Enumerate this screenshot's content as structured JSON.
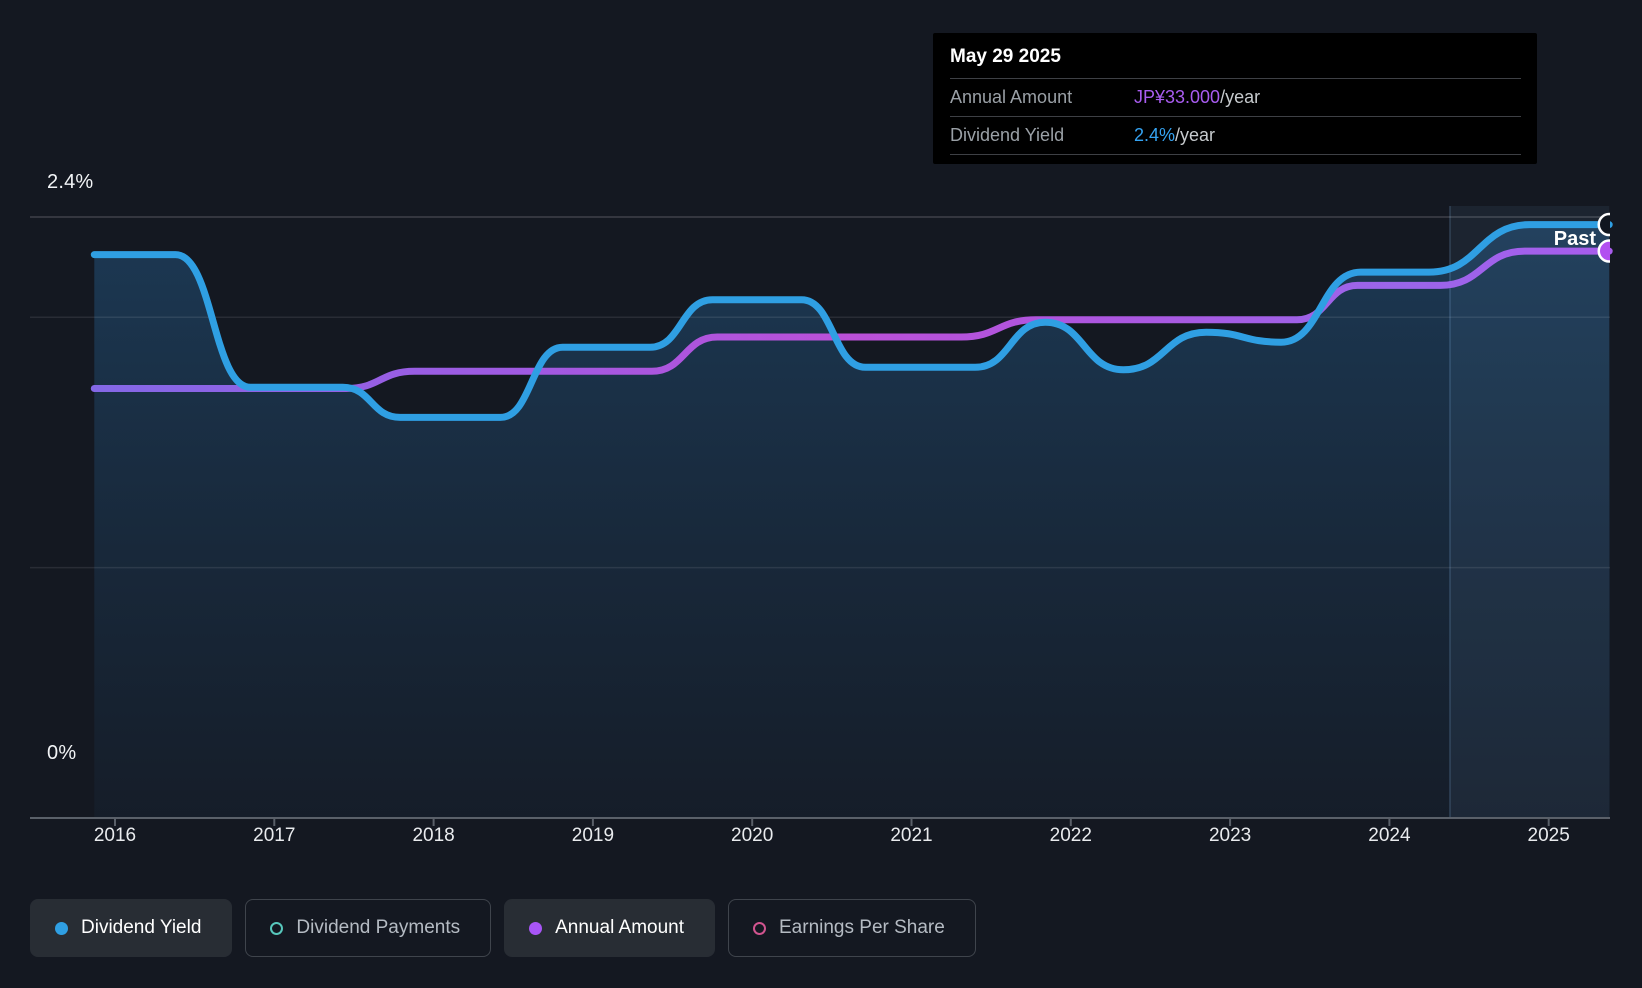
{
  "page": {
    "background": "#141821"
  },
  "tooltip": {
    "date": "May 29 2025",
    "rows": [
      {
        "label": "Annual Amount",
        "value": "JP¥33.000",
        "suffix": "/year",
        "value_color": "#a85cf0"
      },
      {
        "label": "Dividend Yield",
        "value": "2.4%",
        "suffix": "/year",
        "value_color": "#35a3f2"
      }
    ]
  },
  "axis": {
    "y_top_label": "2.4%",
    "y_bottom_label": "0%",
    "years": [
      "2016",
      "2017",
      "2018",
      "2019",
      "2020",
      "2021",
      "2022",
      "2023",
      "2024",
      "2025"
    ]
  },
  "past_label": "Past",
  "legend": {
    "items": [
      {
        "label": "Dividend Yield",
        "color": "#2f9fe3",
        "filled": true,
        "active": true
      },
      {
        "label": "Dividend Payments",
        "color": "#57c7bc",
        "filled": false,
        "active": false
      },
      {
        "label": "Annual Amount",
        "color": "#a855f7",
        "filled": true,
        "active": true
      },
      {
        "label": "Earnings Per Share",
        "color": "#d1548f",
        "filled": false,
        "active": false
      }
    ]
  },
  "chart_data": {
    "type": "line",
    "x_range": [
      2015.87,
      2025.38
    ],
    "x_ticks": [
      2016,
      2017,
      2018,
      2019,
      2020,
      2021,
      2022,
      2023,
      2024,
      2025
    ],
    "y_axis": {
      "unit": "%",
      "range": [
        0,
        2.4
      ],
      "top_label": "2.4%",
      "bottom_label": "0%"
    },
    "gridlines_pct": [
      2.4,
      2.0,
      1.0,
      0.0
    ],
    "highlight_band_years": [
      2024.38,
      2025.38
    ],
    "annotation": "Past",
    "legend_position": "bottom",
    "series": [
      {
        "name": "Dividend Yield",
        "unit": "%",
        "color": "#2f9fe3",
        "area": true,
        "points": [
          [
            2015.87,
            2.25
          ],
          [
            2016.38,
            2.25
          ],
          [
            2016.85,
            1.72
          ],
          [
            2017.43,
            1.72
          ],
          [
            2017.79,
            1.6
          ],
          [
            2018.42,
            1.6
          ],
          [
            2018.81,
            1.88
          ],
          [
            2019.36,
            1.88
          ],
          [
            2019.75,
            2.07
          ],
          [
            2020.31,
            2.07
          ],
          [
            2020.71,
            1.8
          ],
          [
            2021.4,
            1.8
          ],
          [
            2021.84,
            1.98
          ],
          [
            2022.33,
            1.79
          ],
          [
            2022.85,
            1.94
          ],
          [
            2023.32,
            1.9
          ],
          [
            2023.82,
            2.18
          ],
          [
            2024.25,
            2.18
          ],
          [
            2024.88,
            2.37
          ],
          [
            2025.38,
            2.37
          ]
        ]
      },
      {
        "name": "Annual Amount",
        "unit": "JPY",
        "color": "#a55ce0",
        "points": [
          [
            2015.87,
            25
          ],
          [
            2017.45,
            25
          ],
          [
            2017.88,
            26
          ],
          [
            2019.37,
            26
          ],
          [
            2019.78,
            28
          ],
          [
            2021.31,
            28
          ],
          [
            2021.78,
            29
          ],
          [
            2023.42,
            29
          ],
          [
            2023.8,
            31
          ],
          [
            2024.32,
            31
          ],
          [
            2024.85,
            33
          ],
          [
            2025.38,
            33
          ]
        ]
      }
    ]
  }
}
